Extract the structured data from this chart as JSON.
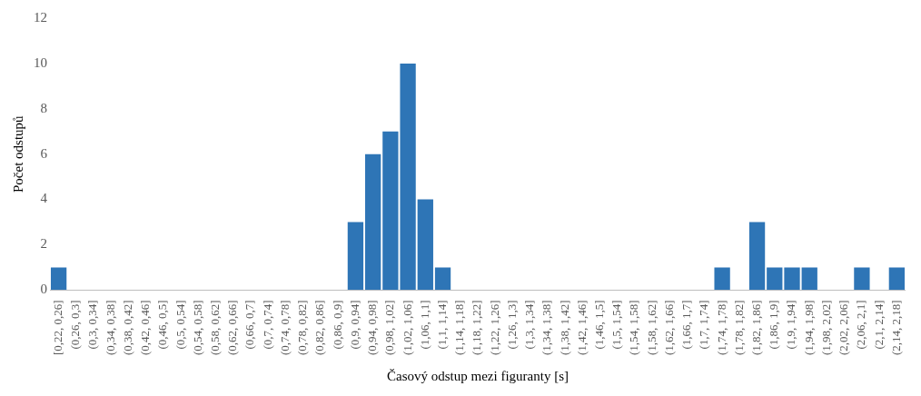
{
  "chart_data": {
    "type": "bar",
    "xlabel": "Časový odstup mezi figuranty [s]",
    "ylabel": "Počet odstupů",
    "categories": [
      "[0,22, 0,26]",
      "(0,26, 0,3]",
      "(0,3, 0,34]",
      "(0,34, 0,38]",
      "(0,38, 0,42]",
      "(0,42, 0,46]",
      "(0,46, 0,5]",
      "(0,5, 0,54]",
      "(0,54, 0,58]",
      "(0,58, 0,62]",
      "(0,62, 0,66]",
      "(0,66, 0,7]",
      "(0,7, 0,74]",
      "(0,74, 0,78]",
      "(0,78, 0,82]",
      "(0,82, 0,86]",
      "(0,86, 0,9]",
      "(0,9, 0,94]",
      "(0,94, 0,98]",
      "(0,98, 1,02]",
      "(1,02, 1,06]",
      "(1,06, 1,1]",
      "(1,1, 1,14]",
      "(1,14, 1,18]",
      "(1,18, 1,22]",
      "(1,22, 1,26]",
      "(1,26, 1,3]",
      "(1,3, 1,34]",
      "(1,34, 1,38]",
      "(1,38, 1,42]",
      "(1,42, 1,46]",
      "(1,46, 1,5]",
      "(1,5, 1,54]",
      "(1,54, 1,58]",
      "(1,58, 1,62]",
      "(1,62, 1,66]",
      "(1,66, 1,7]",
      "(1,7, 1,74]",
      "(1,74, 1,78]",
      "(1,78, 1,82]",
      "(1,82, 1,86]",
      "(1,86, 1,9]",
      "(1,9, 1,94]",
      "(1,94, 1,98]",
      "(1,98, 2,02]",
      "(2,02, 2,06]",
      "(2,06, 2,1]",
      "(2,1, 2,14]",
      "(2,14, 2,18]"
    ],
    "values": [
      1,
      0,
      0,
      0,
      0,
      0,
      0,
      0,
      0,
      0,
      0,
      0,
      0,
      0,
      0,
      0,
      0,
      3,
      6,
      7,
      10,
      4,
      1,
      0,
      0,
      0,
      0,
      0,
      0,
      0,
      0,
      0,
      0,
      0,
      0,
      0,
      0,
      0,
      1,
      0,
      3,
      1,
      1,
      1,
      0,
      0,
      1,
      0,
      1
    ],
    "color": "#2e75b6",
    "ylim": [
      0,
      12
    ],
    "yticks": [
      0,
      2,
      4,
      6,
      8,
      10,
      12
    ],
    "grid": false,
    "legend": false
  }
}
